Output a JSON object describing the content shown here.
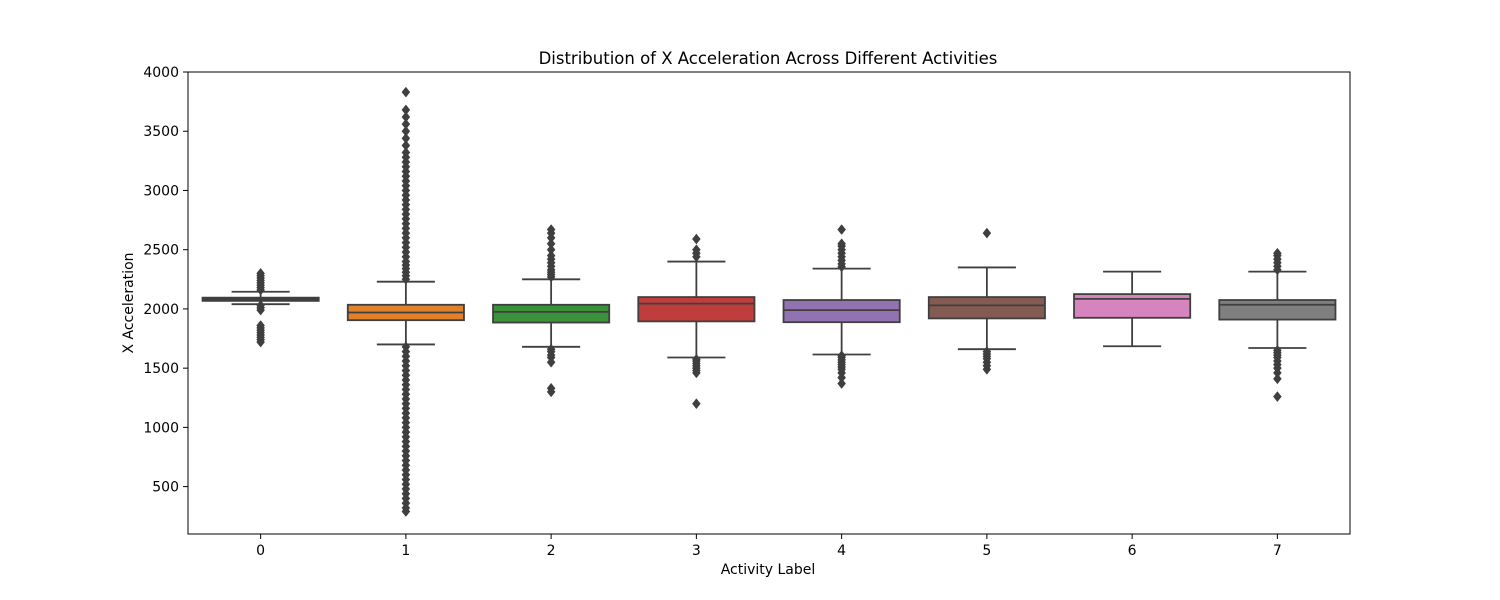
{
  "chart_data": {
    "type": "box",
    "title": "Distribution of X Acceleration Across Different Activities",
    "xlabel": "Activity Label",
    "ylabel": "X Acceleration",
    "ylim": [
      100,
      4000
    ],
    "yticks": [
      500,
      1000,
      1500,
      2000,
      2500,
      3000,
      3500,
      4000
    ],
    "grid": false,
    "categories": [
      "0",
      "1",
      "2",
      "3",
      "4",
      "5",
      "6",
      "7"
    ],
    "boxes": [
      {
        "label": "0",
        "color": "#3a6f96",
        "whisker_low": 2040,
        "q1": 2068,
        "median": 2083,
        "q3": 2095,
        "whisker_high": 2145,
        "outliers": [
          1720,
          1740,
          1760,
          1780,
          1800,
          1820,
          1840,
          1860,
          1990,
          2010,
          2030,
          2160,
          2180,
          2200,
          2220,
          2240,
          2260,
          2280,
          2300
        ]
      },
      {
        "label": "1",
        "color": "#e1812c",
        "whisker_low": 1700,
        "q1": 1905,
        "median": 1970,
        "q3": 2035,
        "whisker_high": 2230,
        "outliers": [
          290,
          320,
          360,
          400,
          440,
          480,
          520,
          560,
          600,
          640,
          680,
          720,
          760,
          800,
          840,
          880,
          920,
          960,
          1000,
          1040,
          1080,
          1120,
          1160,
          1200,
          1240,
          1280,
          1320,
          1360,
          1400,
          1440,
          1480,
          1520,
          1560,
          1600,
          1640,
          1680,
          2250,
          2280,
          2310,
          2340,
          2370,
          2400,
          2440,
          2480,
          2520,
          2560,
          2600,
          2640,
          2680,
          2720,
          2760,
          2800,
          2840,
          2880,
          2920,
          2960,
          3000,
          3040,
          3080,
          3120,
          3160,
          3200,
          3240,
          3280,
          3320,
          3380,
          3440,
          3500,
          3560,
          3620,
          3680,
          3830
        ]
      },
      {
        "label": "2",
        "color": "#3a923a",
        "whisker_low": 1680,
        "q1": 1885,
        "median": 1975,
        "q3": 2035,
        "whisker_high": 2250,
        "outliers": [
          1300,
          1330,
          1550,
          1590,
          1610,
          1640,
          1660,
          2270,
          2290,
          2310,
          2330,
          2360,
          2390,
          2420,
          2450,
          2500,
          2550,
          2600,
          2640,
          2670
        ]
      },
      {
        "label": "3",
        "color": "#c03d3e",
        "whisker_low": 1590,
        "q1": 1895,
        "median": 2045,
        "q3": 2100,
        "whisker_high": 2400,
        "outliers": [
          1200,
          1460,
          1480,
          1500,
          1520,
          1540,
          1560,
          1575,
          2440,
          2470,
          2500,
          2590
        ]
      },
      {
        "label": "4",
        "color": "#9372b2",
        "whisker_low": 1615,
        "q1": 1888,
        "median": 1990,
        "q3": 2075,
        "whisker_high": 2340,
        "outliers": [
          1370,
          1420,
          1460,
          1490,
          1510,
          1530,
          1550,
          1570,
          1590,
          1605,
          2355,
          2380,
          2410,
          2440,
          2470,
          2500,
          2530,
          2550,
          2670
        ]
      },
      {
        "label": "5",
        "color": "#845b53",
        "whisker_low": 1660,
        "q1": 1920,
        "median": 2030,
        "q3": 2100,
        "whisker_high": 2350,
        "outliers": [
          1490,
          1520,
          1550,
          1580,
          1600,
          1620,
          1640,
          2640
        ]
      },
      {
        "label": "6",
        "color": "#d684bd",
        "whisker_low": 1685,
        "q1": 1925,
        "median": 2085,
        "q3": 2125,
        "whisker_high": 2315,
        "outliers": []
      },
      {
        "label": "7",
        "color": "#7f7f7f",
        "whisker_low": 1670,
        "q1": 1910,
        "median": 2035,
        "q3": 2075,
        "whisker_high": 2315,
        "outliers": [
          1260,
          1410,
          1460,
          1500,
          1530,
          1560,
          1590,
          1610,
          1630,
          1650,
          2330,
          2360,
          2390,
          2420,
          2450,
          2470
        ]
      }
    ]
  }
}
